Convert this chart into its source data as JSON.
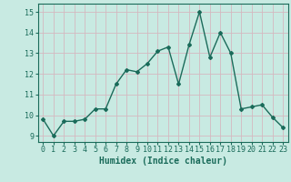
{
  "x": [
    0,
    1,
    2,
    3,
    4,
    5,
    6,
    7,
    8,
    9,
    10,
    11,
    12,
    13,
    14,
    15,
    16,
    17,
    18,
    19,
    20,
    21,
    22,
    23
  ],
  "y": [
    9.8,
    9.0,
    9.7,
    9.7,
    9.8,
    10.3,
    10.3,
    11.5,
    12.2,
    12.1,
    12.5,
    13.1,
    13.3,
    11.5,
    13.4,
    15.0,
    12.8,
    14.0,
    13.0,
    10.3,
    10.4,
    10.5,
    9.9,
    9.4
  ],
  "line_color": "#1a6b5a",
  "marker": "D",
  "marker_size": 2.0,
  "linewidth": 1.0,
  "bg_color": "#c8eae2",
  "grid_color": "#e0f0eb",
  "xlabel": "Humidex (Indice chaleur)",
  "xlim": [
    -0.5,
    23.5
  ],
  "ylim": [
    8.7,
    15.4
  ],
  "yticks": [
    9,
    10,
    11,
    12,
    13,
    14,
    15
  ],
  "xticks": [
    0,
    1,
    2,
    3,
    4,
    5,
    6,
    7,
    8,
    9,
    10,
    11,
    12,
    13,
    14,
    15,
    16,
    17,
    18,
    19,
    20,
    21,
    22,
    23
  ],
  "tick_color": "#1a6b5a",
  "label_color": "#1a6b5a",
  "xlabel_fontsize": 7,
  "tick_fontsize": 6
}
